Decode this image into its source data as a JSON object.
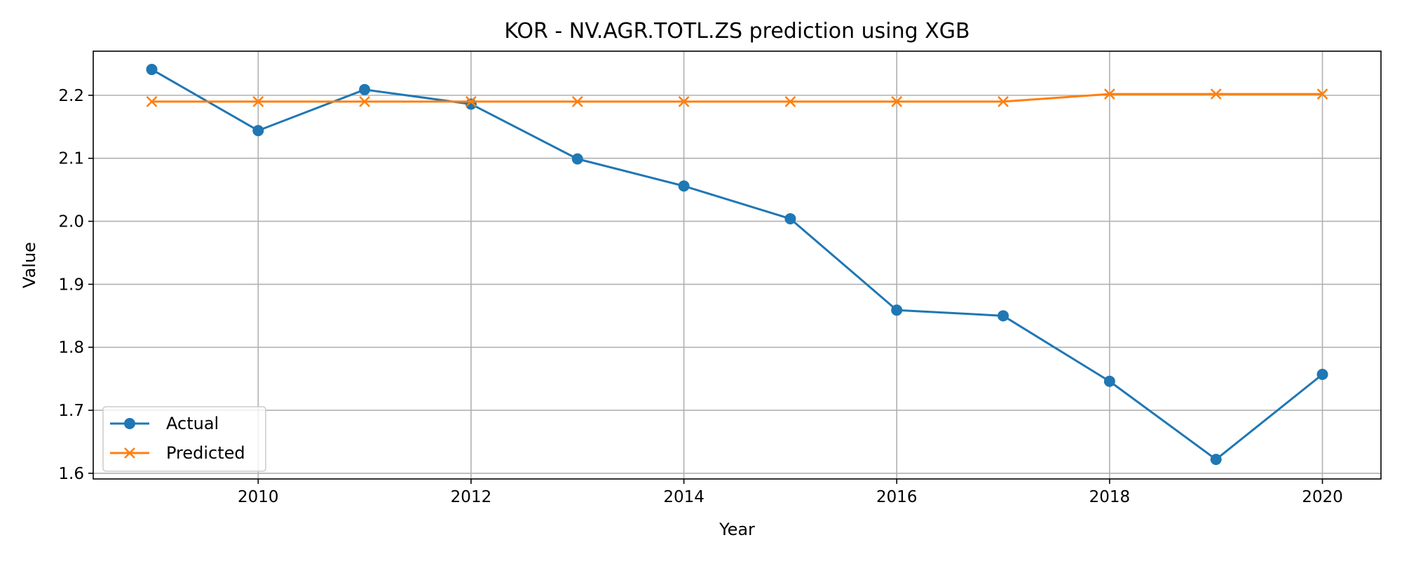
{
  "chart_data": {
    "type": "line",
    "title": "KOR - NV.AGR.TOTL.ZS prediction using XGB",
    "xlabel": "Year",
    "ylabel": "Value",
    "x": [
      2009,
      2010,
      2011,
      2012,
      2013,
      2014,
      2015,
      2016,
      2017,
      2018,
      2019,
      2020
    ],
    "xlim": [
      2008.45,
      2020.55
    ],
    "ylim": [
      1.591,
      2.27
    ],
    "xticks": [
      2010,
      2012,
      2014,
      2016,
      2018,
      2020
    ],
    "yticks": [
      1.6,
      1.7,
      1.8,
      1.9,
      2.0,
      2.1,
      2.2
    ],
    "grid": true,
    "legend_position": "lower-left",
    "series": [
      {
        "name": "Actual",
        "color": "#1f77b4",
        "marker": "circle",
        "values": [
          2.241,
          2.144,
          2.209,
          2.186,
          2.099,
          2.056,
          2.004,
          1.859,
          1.85,
          1.746,
          1.622,
          1.757
        ]
      },
      {
        "name": "Predicted",
        "color": "#ff7f0e",
        "marker": "x",
        "values": [
          2.19,
          2.19,
          2.19,
          2.19,
          2.19,
          2.19,
          2.19,
          2.19,
          2.19,
          2.202,
          2.202,
          2.202
        ]
      }
    ]
  }
}
